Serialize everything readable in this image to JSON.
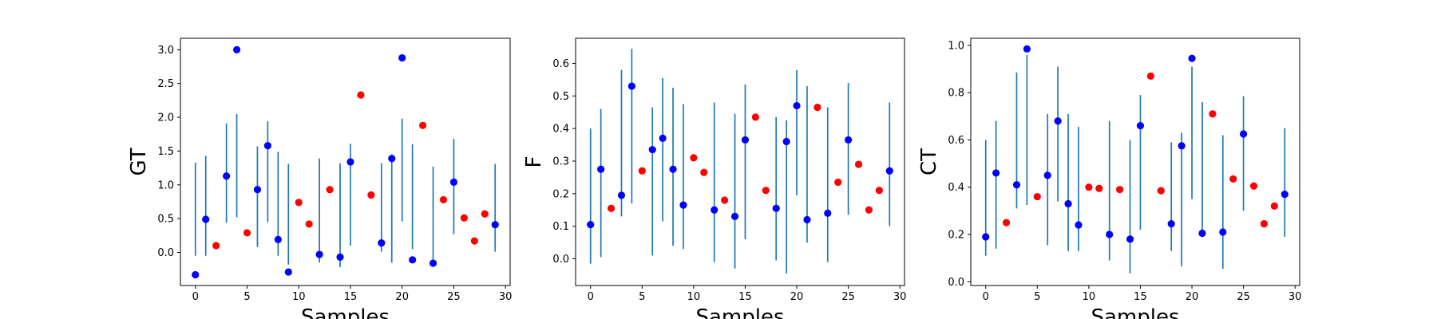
{
  "chart_data": [
    {
      "type": "scatter",
      "ylabel": "GT",
      "xlabel": "Samples",
      "x": [
        0,
        1,
        2,
        3,
        4,
        5,
        6,
        7,
        8,
        9,
        10,
        11,
        12,
        13,
        14,
        15,
        16,
        17,
        18,
        19,
        20,
        21,
        22,
        23,
        24,
        25,
        26,
        27,
        28,
        29
      ],
      "series": [
        {
          "color": "#0000ff",
          "error_color": "#1f77b4",
          "values": [
            -0.33,
            0.49,
            null,
            1.13,
            3.0,
            null,
            0.93,
            1.58,
            0.19,
            -0.29,
            null,
            null,
            -0.03,
            null,
            -0.07,
            1.34,
            null,
            null,
            0.14,
            1.39,
            2.88,
            -0.11,
            null,
            -0.16,
            null,
            1.04,
            null,
            null,
            null,
            0.41
          ],
          "error_low": [
            -0.05,
            -0.05,
            null,
            0.44,
            0.52,
            null,
            0.08,
            0.45,
            -0.05,
            -0.18,
            null,
            null,
            -0.15,
            null,
            -0.22,
            0.1,
            null,
            null,
            0.01,
            -0.15,
            0.46,
            0.05,
            null,
            -0.18,
            null,
            0.27,
            null,
            null,
            null,
            0.01
          ],
          "error_high": [
            1.33,
            1.43,
            null,
            1.91,
            2.05,
            null,
            1.57,
            1.94,
            1.49,
            1.31,
            null,
            null,
            1.39,
            null,
            1.32,
            1.61,
            null,
            null,
            1.32,
            1.45,
            1.98,
            1.6,
            null,
            1.27,
            null,
            1.68,
            null,
            null,
            null,
            1.31
          ]
        },
        {
          "color": "#ff0000",
          "values": [
            null,
            null,
            0.1,
            null,
            null,
            0.29,
            null,
            null,
            null,
            null,
            0.74,
            0.42,
            null,
            0.93,
            null,
            null,
            2.33,
            0.85,
            null,
            null,
            null,
            null,
            1.88,
            null,
            0.78,
            null,
            0.51,
            0.17,
            0.57,
            null
          ]
        }
      ],
      "xlim": [
        -1.45,
        30.45
      ],
      "xticks": [
        0,
        5,
        10,
        15,
        20,
        25,
        30
      ],
      "ylim": [
        -0.49,
        3.17
      ],
      "yticks": [
        {
          "value": 0,
          "label": "0.0"
        },
        0.5,
        {
          "value": 1,
          "label": "1.0"
        },
        1.5,
        {
          "value": 2,
          "label": "2.0"
        },
        2.5,
        {
          "value": 3,
          "label": "3.0"
        }
      ]
    },
    {
      "type": "scatter",
      "ylabel": "F",
      "xlabel": "Samples",
      "x": [
        0,
        1,
        2,
        3,
        4,
        5,
        6,
        7,
        8,
        9,
        10,
        11,
        12,
        13,
        14,
        15,
        16,
        17,
        18,
        19,
        20,
        21,
        22,
        23,
        24,
        25,
        26,
        27,
        28,
        29
      ],
      "series": [
        {
          "color": "#0000ff",
          "error_color": "#1f77b4",
          "values": [
            0.105,
            0.275,
            null,
            0.195,
            0.53,
            null,
            0.335,
            0.37,
            0.275,
            0.165,
            null,
            null,
            0.15,
            null,
            0.13,
            0.365,
            null,
            null,
            0.155,
            0.36,
            0.47,
            0.12,
            null,
            0.14,
            null,
            0.365,
            null,
            null,
            null,
            0.27
          ],
          "error_low": [
            -0.015,
            0.005,
            null,
            0.13,
            0.17,
            null,
            0.01,
            0.115,
            0.04,
            0.03,
            null,
            null,
            -0.01,
            null,
            -0.03,
            0.06,
            null,
            null,
            -0.005,
            -0.045,
            0.195,
            0.05,
            null,
            -0.01,
            null,
            0.135,
            null,
            null,
            null,
            0.1
          ],
          "error_high": [
            0.4,
            0.46,
            null,
            0.58,
            0.645,
            null,
            0.465,
            0.555,
            0.525,
            0.475,
            null,
            null,
            0.48,
            null,
            0.445,
            0.535,
            null,
            null,
            0.435,
            0.425,
            0.58,
            0.53,
            null,
            0.465,
            null,
            0.54,
            null,
            null,
            null,
            0.48
          ]
        },
        {
          "color": "#ff0000",
          "values": [
            null,
            null,
            0.155,
            null,
            null,
            0.27,
            null,
            null,
            null,
            null,
            0.31,
            0.265,
            null,
            0.18,
            null,
            null,
            0.435,
            0.21,
            null,
            null,
            null,
            null,
            0.465,
            null,
            0.235,
            null,
            0.29,
            0.15,
            0.21,
            null
          ]
        }
      ],
      "xlim": [
        -1.45,
        30.45
      ],
      "xticks": [
        0,
        5,
        10,
        15,
        20,
        25,
        30
      ],
      "ylim": [
        -0.082,
        0.677
      ],
      "yticks": [
        {
          "value": 0,
          "label": "0.0"
        },
        0.1,
        0.2,
        0.3,
        0.4,
        0.5,
        0.6
      ]
    },
    {
      "type": "scatter",
      "ylabel": "CT",
      "xlabel": "Samples",
      "x": [
        0,
        1,
        2,
        3,
        4,
        5,
        6,
        7,
        8,
        9,
        10,
        11,
        12,
        13,
        14,
        15,
        16,
        17,
        18,
        19,
        20,
        21,
        22,
        23,
        24,
        25,
        26,
        27,
        28,
        29
      ],
      "series": [
        {
          "color": "#0000ff",
          "error_color": "#1f77b4",
          "values": [
            0.19,
            0.46,
            null,
            0.41,
            0.985,
            null,
            0.45,
            0.68,
            0.33,
            0.24,
            null,
            null,
            0.2,
            null,
            0.18,
            0.66,
            null,
            null,
            0.245,
            0.575,
            0.945,
            0.205,
            null,
            0.21,
            null,
            0.625,
            null,
            null,
            null,
            0.37
          ],
          "error_low": [
            0.11,
            0.14,
            null,
            0.31,
            0.325,
            null,
            0.155,
            0.34,
            0.13,
            0.13,
            null,
            null,
            0.09,
            null,
            0.035,
            0.22,
            null,
            null,
            0.13,
            0.065,
            0.35,
            0.19,
            null,
            0.055,
            null,
            0.3,
            null,
            null,
            null,
            0.19
          ],
          "error_high": [
            0.6,
            0.68,
            null,
            0.885,
            0.96,
            null,
            0.71,
            0.91,
            0.71,
            0.655,
            null,
            null,
            0.68,
            null,
            0.6,
            0.79,
            null,
            null,
            0.59,
            0.63,
            0.91,
            0.76,
            null,
            0.62,
            null,
            0.785,
            null,
            null,
            null,
            0.65
          ]
        },
        {
          "color": "#ff0000",
          "values": [
            null,
            null,
            0.25,
            null,
            null,
            0.36,
            null,
            null,
            null,
            null,
            0.4,
            0.395,
            null,
            0.39,
            null,
            null,
            0.87,
            0.385,
            null,
            null,
            null,
            null,
            0.71,
            null,
            0.435,
            null,
            0.405,
            0.245,
            0.32,
            null
          ]
        }
      ],
      "xlim": [
        -1.45,
        30.45
      ],
      "xticks": [
        0,
        5,
        10,
        15,
        20,
        25,
        30
      ],
      "ylim": [
        -0.016,
        1.03
      ],
      "yticks": [
        {
          "value": 0,
          "label": "0.0"
        },
        0.2,
        0.4,
        0.6,
        0.8,
        {
          "value": 1,
          "label": "1.0"
        }
      ]
    }
  ]
}
